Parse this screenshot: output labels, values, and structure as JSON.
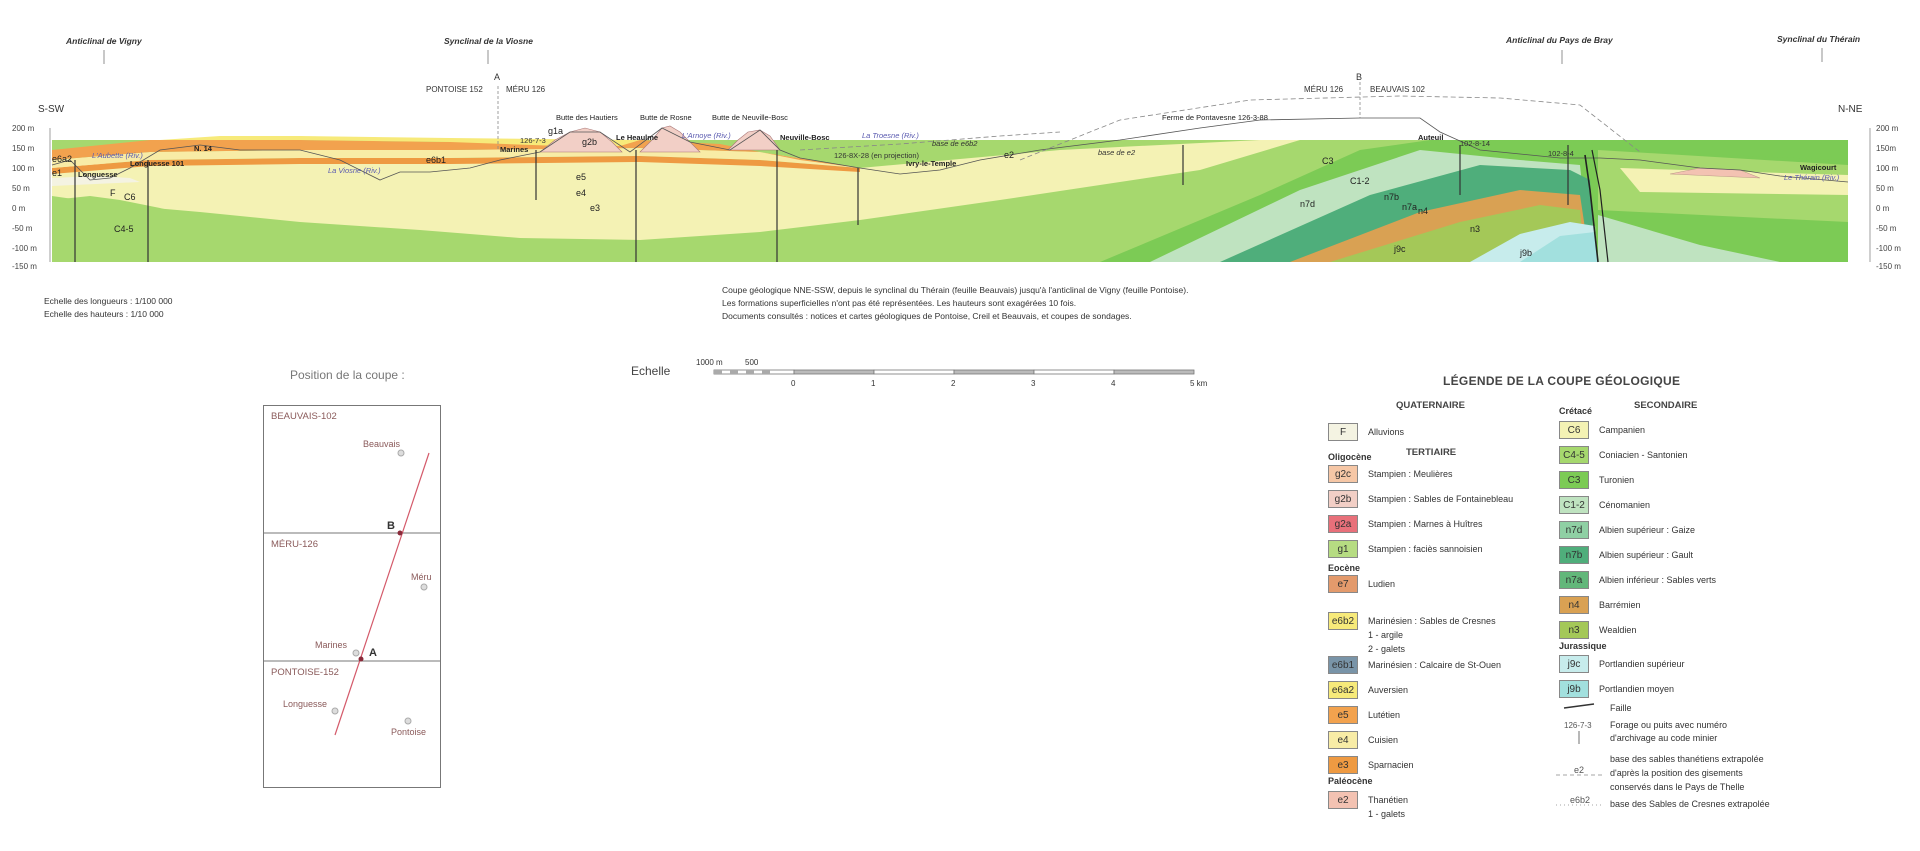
{
  "section": {
    "left_direction": "S-SW",
    "right_direction": "N-NE",
    "structures": [
      "Anticlinal de Vigny",
      "Synclinal de la Viosne",
      "Anticlinal du Pays de Bray",
      "Synclinal du Thérain"
    ],
    "axis_left": [
      "200 m",
      "150 m",
      "100 m",
      "50 m",
      "0 m",
      "-50 m",
      "-100 m",
      "-150 m"
    ],
    "axis_right": [
      "200 m",
      "150m",
      "100 m",
      "50 m",
      "0 m",
      "-50 m",
      "-100 m",
      "-150 m"
    ],
    "point_a": {
      "label": "A",
      "left": "PONTOISE 152",
      "right": "MÉRU 126"
    },
    "point_b": {
      "label": "B",
      "left": "MÉRU 126",
      "right": "BEAUVAIS 102"
    },
    "places": [
      "Longuesse",
      "Longuesse 101",
      "N. 14",
      "Marines",
      "Le Heaulme",
      "Neuville-Bosc",
      "Ivry-le-Temple",
      "Ferme de Pontavesne 126-3-88",
      "Auteuil",
      "Wagicourt",
      "Butte des Hautiers",
      "Butte de Rosne",
      "Butte de Neuville-Bosc"
    ],
    "rivers": [
      "L'Aubette (Riv.)",
      "La Viosne (Riv.)",
      "L'Arnoye (Riv.)",
      "La Troesne (Riv.)",
      "Le Thérain (Riv.)"
    ],
    "boreholes": [
      "126-7-3",
      "126-8X-28 (en projection)",
      "102-8-14",
      "102-8-4"
    ],
    "base_labels": [
      "base de e6b2",
      "base de e2"
    ],
    "formation_labels": [
      "e6a2",
      "e1",
      "F",
      "C6",
      "C4-5",
      "e6b1",
      "e5",
      "e4",
      "e3",
      "g1a",
      "g2b",
      "e2",
      "C3",
      "C1-2",
      "n7d",
      "n7b",
      "n7a",
      "n4",
      "n3",
      "j9c",
      "j9b"
    ]
  },
  "notes": {
    "scale_lengths": "Echelle des longueurs : 1/100 000",
    "scale_heights": "Echelle des hauteurs : 1/10 000",
    "caption_1": "Coupe géologique NNE-SSW, depuis le synclinal du Thérain (feuille Beauvais) jusqu'à l'anticlinal de Vigny (feuille Pontoise).",
    "caption_2": "Les formations superficielles n'ont pas été représentées. Les hauteurs sont exagérées 10 fois.",
    "caption_3": "Documents consultés : notices et cartes géologiques de Pontoise, Creil et Beauvais, et coupes de sondages."
  },
  "location_map": {
    "title": "Position de la coupe :",
    "sheets": [
      "BEAUVAIS-102",
      "MÉRU-126",
      "PONTOISE-152"
    ],
    "towns": [
      "Beauvais",
      "Méru",
      "Marines",
      "Longuesse",
      "Pontoise"
    ],
    "points": [
      "B",
      "A"
    ]
  },
  "scale_bar": {
    "label": "Echelle",
    "left_labels": [
      "1000 m",
      "500"
    ],
    "ticks": [
      "0",
      "1",
      "2",
      "3",
      "4",
      "5 km"
    ]
  },
  "legend": {
    "title": "LÉGENDE DE LA COUPE GÉOLOGIQUE",
    "quaternaire": "QUATERNAIRE",
    "tertiaire": "TERTIAIRE",
    "secondaire": "SECONDAIRE",
    "groups": {
      "oligocene": "Oligocène",
      "eocene": "Eocène",
      "paleocene": "Paléocène",
      "cretace": "Crétacé",
      "jurassique": "Jurassique"
    },
    "left_items": [
      {
        "code": "F",
        "label": "Alluvions",
        "color": "#f4f3e2"
      },
      {
        "code": "g2c",
        "label": "Stampien : Meulières",
        "color": "#f6c7a6"
      },
      {
        "code": "g2b",
        "label": "Stampien : Sables de Fontainebleau",
        "color": "#f2cfc6"
      },
      {
        "code": "g2a",
        "label": "Stampien : Marnes à Huîtres",
        "color": "#e8707a"
      },
      {
        "code": "g1",
        "label": "Stampien : faciès sannoisien",
        "color": "#b6dc82"
      },
      {
        "code": "e7",
        "label": "Ludien",
        "color": "#e39a6c"
      },
      {
        "code": "e6b2",
        "label": "Marinésien : Sables de Cresnes",
        "color": "#f7ea7a",
        "extra": [
          "1 - argile",
          "2 - galets"
        ]
      },
      {
        "code": "e6b1",
        "label": "Marinésien : Calcaire de St-Ouen",
        "color": "#7994a8"
      },
      {
        "code": "e6a2",
        "label": "Auversien",
        "color": "#f7ea7a"
      },
      {
        "code": "e5",
        "label": "Lutétien",
        "color": "#f2a24e"
      },
      {
        "code": "e4",
        "label": "Cuisien",
        "color": "#f8eca6"
      },
      {
        "code": "e3",
        "label": "Sparnacien",
        "color": "#ee9a42"
      },
      {
        "code": "e2",
        "label": "Thanétien",
        "color": "#f3c2b2",
        "extra": [
          "1 - galets"
        ]
      }
    ],
    "right_items": [
      {
        "code": "C6",
        "label": "Campanien",
        "color": "#f4f2b4"
      },
      {
        "code": "C4-5",
        "label": "Coniacien - Santonien",
        "color": "#a6d86e"
      },
      {
        "code": "C3",
        "label": "Turonien",
        "color": "#7ccb55"
      },
      {
        "code": "C1-2",
        "label": "Cénomanien",
        "color": "#bfe3c0"
      },
      {
        "code": "n7d",
        "label": "Albien supérieur : Gaize",
        "color": "#8fd0a4"
      },
      {
        "code": "n7b",
        "label": "Albien supérieur : Gault",
        "color": "#4fae7b"
      },
      {
        "code": "n7a",
        "label": "Albien inférieur : Sables verts",
        "color": "#62b77a"
      },
      {
        "code": "n4",
        "label": "Barrémien",
        "color": "#d9a153"
      },
      {
        "code": "n3",
        "label": "Wealdien",
        "color": "#a4c858"
      },
      {
        "code": "j9c",
        "label": "Portlandien supérieur",
        "color": "#c7ecec"
      },
      {
        "code": "j9b",
        "label": "Portlandien moyen",
        "color": "#a2e0de"
      }
    ],
    "symbols": {
      "fault": "Faille",
      "borehole_code": "126-7-3",
      "borehole_1": "Forage ou puits avec numéro",
      "borehole_2": "d'archivage au code minier",
      "e2_code": "e2",
      "e2_1": "base des sables thanétiens extrapolée",
      "e2_2": "d'après la position des gisements",
      "e2_3": "conservés dans le Pays de Thelle",
      "e6b2_code": "e6b2",
      "e6b2_1": "base des Sables de Cresnes extrapolée"
    }
  }
}
